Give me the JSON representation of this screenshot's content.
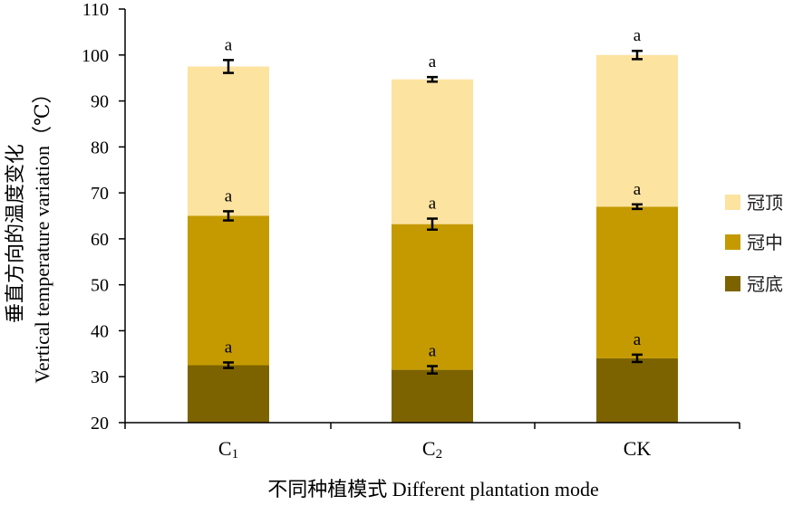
{
  "chart_data": {
    "type": "bar",
    "stacked": true,
    "categories": [
      "C1",
      "C2",
      "CK"
    ],
    "category_labels": [
      {
        "main": "C",
        "sub": "1"
      },
      {
        "main": "C",
        "sub": "2"
      },
      {
        "main": "CK",
        "sub": ""
      }
    ],
    "series": [
      {
        "name": "冠底",
        "color": "#7d6300",
        "totals": [
          32.5,
          31.5,
          34.0
        ],
        "errors": [
          0.6,
          0.8,
          0.8
        ],
        "significance": [
          "a",
          "a",
          "a"
        ]
      },
      {
        "name": "冠中",
        "color": "#c49a00",
        "totals": [
          65.0,
          63.2,
          67.0
        ],
        "errors": [
          1.0,
          1.2,
          0.5
        ],
        "significance": [
          "a",
          "a",
          "a"
        ]
      },
      {
        "name": "冠顶",
        "color": "#fde3a0",
        "totals": [
          97.5,
          94.7,
          100.0
        ],
        "errors": [
          1.4,
          0.5,
          0.9
        ],
        "significance": [
          "a",
          "a",
          "a"
        ]
      }
    ],
    "ylim": [
      20,
      110
    ],
    "yticks": [
      20,
      30,
      40,
      50,
      60,
      70,
      80,
      90,
      100,
      110
    ],
    "xlabel": "不同种植模式 Different plantation mode",
    "ylabel_line1": "垂直方向的温度变化",
    "ylabel_line2": "Vertical temperature variation（℃）",
    "legend_order": [
      "冠顶",
      "冠中",
      "冠底"
    ],
    "legend_position": "right",
    "grid": false
  }
}
